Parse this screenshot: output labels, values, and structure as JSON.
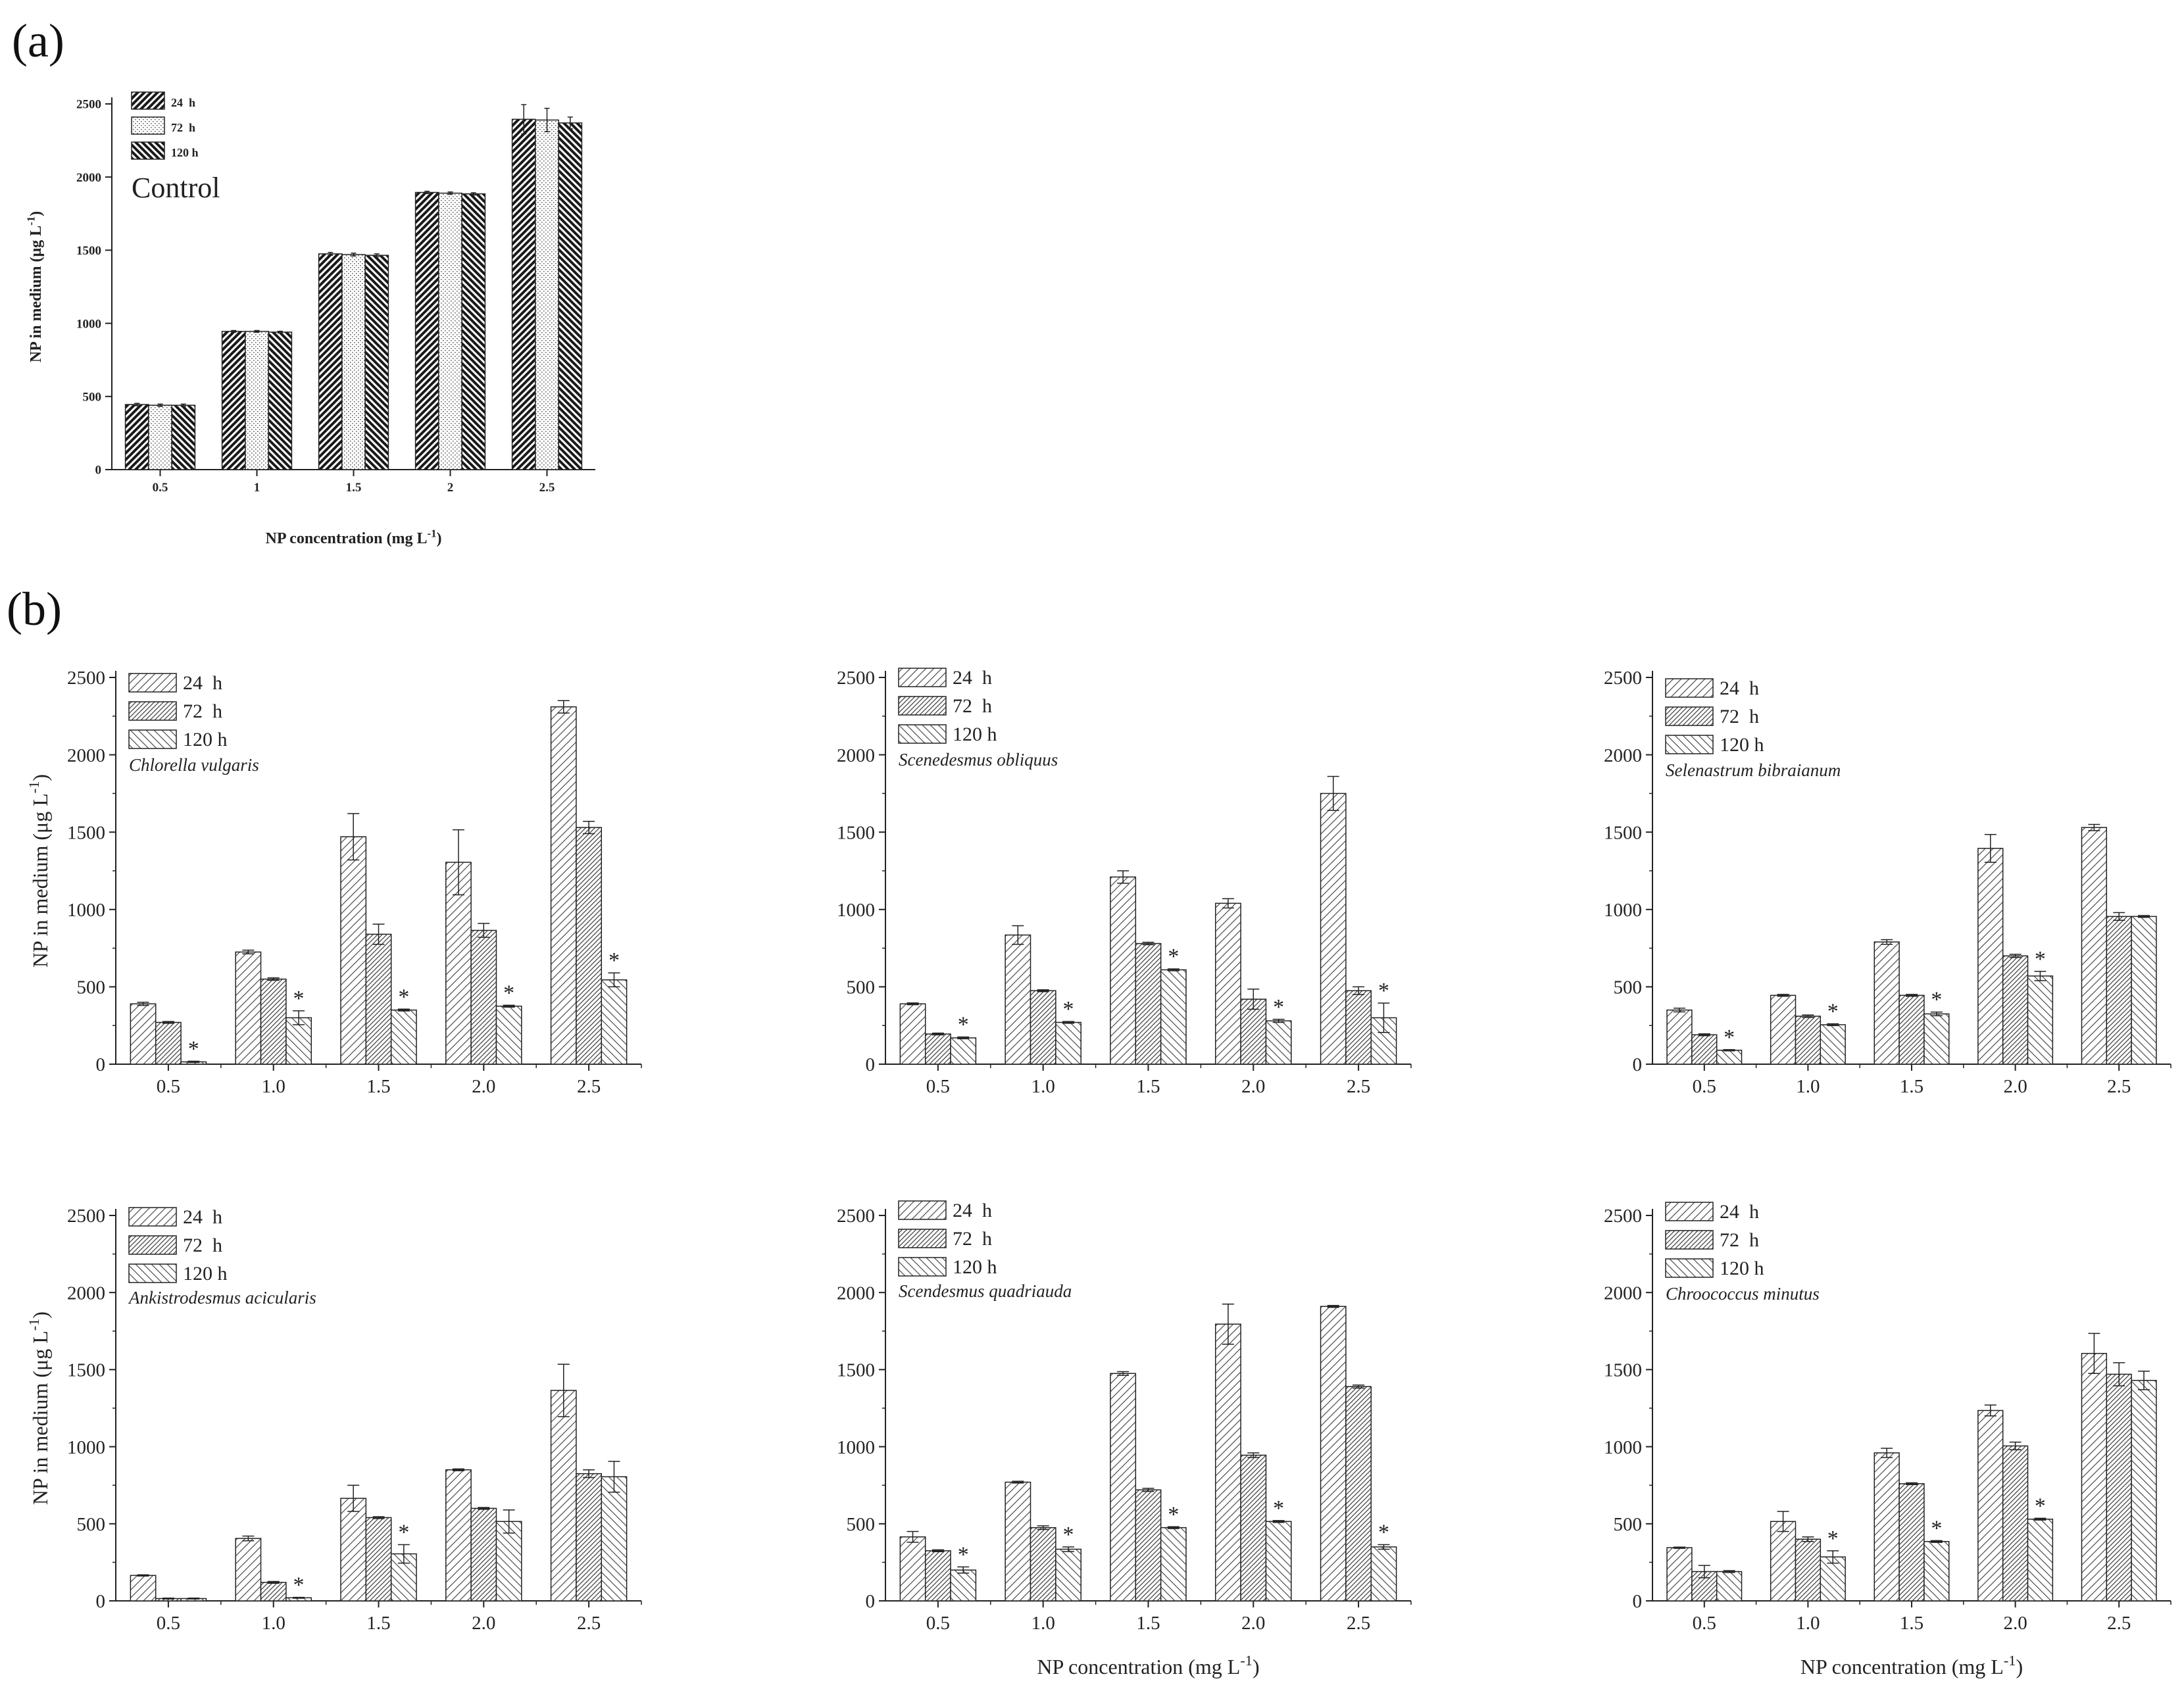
{
  "panel_labels": [
    "(a)",
    "(b)"
  ],
  "legend_labels": [
    "24  h",
    "72  h",
    "120 h"
  ],
  "chart_data": [
    {
      "type": "bar",
      "panel": "(a)",
      "annotation": "Control",
      "xlabel": "NP concentration (mg L",
      "xlabel_sup": "-1",
      "ylabel": "NP in medium (μg L",
      "ylabel_sup": "-1",
      "categories": [
        "0.5",
        "1",
        "1.5",
        "2",
        "2.5"
      ],
      "ylim": [
        0,
        2500
      ],
      "yticks": [
        "0",
        "500",
        "1000",
        "1500",
        "2000",
        "2500"
      ],
      "series": [
        {
          "name": "24  h",
          "values": [
            445,
            945,
            1475,
            1895,
            2395
          ],
          "errors": [
            8,
            6,
            10,
            8,
            100
          ]
        },
        {
          "name": "72  h",
          "values": [
            440,
            945,
            1470,
            1890,
            2390
          ],
          "errors": [
            8,
            6,
            10,
            8,
            80
          ]
        },
        {
          "name": "120 h",
          "values": [
            440,
            940,
            1465,
            1885,
            2370
          ],
          "errors": [
            8,
            6,
            10,
            8,
            40
          ]
        }
      ],
      "significance": [
        [
          false,
          false,
          false
        ],
        [
          false,
          false,
          false
        ],
        [
          false,
          false,
          false
        ],
        [
          false,
          false,
          false
        ],
        [
          false,
          false,
          false
        ]
      ]
    },
    {
      "type": "bar",
      "panel": "(b)",
      "species": "Chlorella vulgaris",
      "xlabel": "",
      "ylabel": "NP in medium (μg L",
      "ylabel_sup": "-1",
      "categories": [
        "0.5",
        "1.0",
        "1.5",
        "2.0",
        "2.5"
      ],
      "ylim": [
        0,
        2500
      ],
      "yticks": [
        "0",
        "500",
        "1000",
        "1500",
        "2000",
        "2500"
      ],
      "series": [
        {
          "name": "24  h",
          "values": [
            390,
            725,
            1470,
            1305,
            2310
          ],
          "errors": [
            10,
            12,
            150,
            210,
            40
          ]
        },
        {
          "name": "72  h",
          "values": [
            270,
            550,
            840,
            865,
            1530
          ],
          "errors": [
            6,
            8,
            65,
            45,
            40
          ]
        },
        {
          "name": "120 h",
          "values": [
            15,
            300,
            350,
            375,
            545
          ],
          "errors": [
            4,
            45,
            6,
            6,
            45
          ]
        }
      ],
      "significance": [
        [
          false,
          false,
          true
        ],
        [
          false,
          false,
          true
        ],
        [
          false,
          false,
          true
        ],
        [
          false,
          false,
          true
        ],
        [
          false,
          false,
          true
        ]
      ]
    },
    {
      "type": "bar",
      "panel": "(b)",
      "species": "Scenedesmus obliquus",
      "xlabel": "",
      "ylabel": "",
      "categories": [
        "0.5",
        "1.0",
        "1.5",
        "2.0",
        "2.5"
      ],
      "ylim": [
        0,
        2500
      ],
      "yticks": [
        "0",
        "500",
        "1000",
        "1500",
        "2000",
        "2500"
      ],
      "series": [
        {
          "name": "24  h",
          "values": [
            390,
            835,
            1210,
            1040,
            1750
          ],
          "errors": [
            6,
            60,
            40,
            30,
            110
          ]
        },
        {
          "name": "72  h",
          "values": [
            195,
            475,
            780,
            420,
            475
          ],
          "errors": [
            6,
            6,
            8,
            65,
            25
          ]
        },
        {
          "name": "120 h",
          "values": [
            170,
            270,
            610,
            280,
            300
          ],
          "errors": [
            6,
            6,
            6,
            10,
            95
          ]
        }
      ],
      "significance": [
        [
          false,
          false,
          true
        ],
        [
          false,
          false,
          true
        ],
        [
          false,
          false,
          true
        ],
        [
          false,
          false,
          true
        ],
        [
          false,
          false,
          true
        ]
      ]
    },
    {
      "type": "bar",
      "panel": "(b)",
      "species": "Selenastrum bibraianum",
      "xlabel": "",
      "ylabel": "",
      "categories": [
        "0.5",
        "1.0",
        "1.5",
        "2.0",
        "2.5"
      ],
      "ylim": [
        0,
        2500
      ],
      "yticks": [
        "0",
        "500",
        "1000",
        "1500",
        "2000",
        "2500"
      ],
      "series": [
        {
          "name": "24  h",
          "values": [
            350,
            445,
            790,
            1395,
            1530
          ],
          "errors": [
            12,
            6,
            15,
            90,
            20
          ]
        },
        {
          "name": "72  h",
          "values": [
            190,
            310,
            445,
            700,
            955
          ],
          "errors": [
            6,
            8,
            6,
            10,
            25
          ]
        },
        {
          "name": "120 h",
          "values": [
            90,
            255,
            325,
            570,
            955
          ],
          "errors": [
            4,
            6,
            12,
            30,
            6
          ]
        }
      ],
      "significance": [
        [
          false,
          false,
          true
        ],
        [
          false,
          false,
          true
        ],
        [
          false,
          false,
          true
        ],
        [
          false,
          false,
          true
        ],
        [
          false,
          false,
          false
        ]
      ]
    },
    {
      "type": "bar",
      "panel": "(b)",
      "species": "Ankistrodesmus acicularis",
      "xlabel": "",
      "ylabel": "NP in medium (μg L",
      "ylabel_sup": "-1",
      "categories": [
        "0.5",
        "1.0",
        "1.5",
        "2.0",
        "2.5"
      ],
      "ylim": [
        0,
        2500
      ],
      "yticks": [
        "0",
        "500",
        "1000",
        "1500",
        "2000",
        "2500"
      ],
      "series": [
        {
          "name": "24  h",
          "values": [
            165,
            405,
            665,
            850,
            1365
          ],
          "errors": [
            4,
            15,
            85,
            6,
            170
          ]
        },
        {
          "name": "72  h",
          "values": [
            15,
            120,
            540,
            600,
            825
          ],
          "errors": [
            3,
            6,
            6,
            6,
            25
          ]
        },
        {
          "name": "120 h",
          "values": [
            15,
            20,
            305,
            515,
            805
          ],
          "errors": [
            3,
            3,
            60,
            75,
            100
          ]
        }
      ],
      "significance": [
        [
          false,
          false,
          false
        ],
        [
          false,
          false,
          true
        ],
        [
          false,
          false,
          true
        ],
        [
          false,
          false,
          false
        ],
        [
          false,
          false,
          false
        ]
      ]
    },
    {
      "type": "bar",
      "panel": "(b)",
      "species": "Scendesmus quadriauda",
      "xlabel": "NP concentration (mg L",
      "xlabel_sup": "-1",
      "ylabel": "",
      "categories": [
        "0.5",
        "1.0",
        "1.5",
        "2.0",
        "2.5"
      ],
      "ylim": [
        0,
        2500
      ],
      "yticks": [
        "0",
        "500",
        "1000",
        "1500",
        "2000",
        "2500"
      ],
      "series": [
        {
          "name": "24  h",
          "values": [
            415,
            770,
            1475,
            1795,
            1910
          ],
          "errors": [
            35,
            6,
            12,
            130,
            6
          ]
        },
        {
          "name": "72  h",
          "values": [
            325,
            475,
            720,
            945,
            1390
          ],
          "errors": [
            6,
            12,
            10,
            15,
            10
          ]
        },
        {
          "name": "120 h",
          "values": [
            200,
            335,
            475,
            515,
            350
          ],
          "errors": [
            20,
            15,
            6,
            6,
            15
          ]
        }
      ],
      "significance": [
        [
          false,
          false,
          true
        ],
        [
          false,
          false,
          true
        ],
        [
          false,
          false,
          true
        ],
        [
          false,
          false,
          true
        ],
        [
          false,
          false,
          true
        ]
      ]
    },
    {
      "type": "bar",
      "panel": "(b)",
      "species": "Chroococcus minutus",
      "xlabel": "NP concentration (mg L",
      "xlabel_sup": "-1",
      "ylabel": "",
      "categories": [
        "0.5",
        "1.0",
        "1.5",
        "2.0",
        "2.5"
      ],
      "ylim": [
        0,
        2500
      ],
      "yticks": [
        "0",
        "500",
        "1000",
        "1500",
        "2000",
        "2500"
      ],
      "series": [
        {
          "name": "24  h",
          "values": [
            345,
            515,
            960,
            1235,
            1605
          ],
          "errors": [
            4,
            65,
            30,
            35,
            130
          ]
        },
        {
          "name": "72  h",
          "values": [
            190,
            400,
            760,
            1005,
            1470
          ],
          "errors": [
            40,
            15,
            6,
            25,
            75
          ]
        },
        {
          "name": "120 h",
          "values": [
            190,
            285,
            385,
            530,
            1430
          ],
          "errors": [
            6,
            40,
            6,
            6,
            60
          ]
        }
      ],
      "significance": [
        [
          false,
          false,
          false
        ],
        [
          false,
          false,
          true
        ],
        [
          false,
          false,
          true
        ],
        [
          false,
          false,
          true
        ],
        [
          false,
          false,
          false
        ]
      ]
    }
  ]
}
